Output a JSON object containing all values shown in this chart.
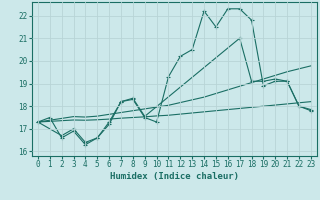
{
  "xlabel": "Humidex (Indice chaleur)",
  "bg_color": "#cce8ea",
  "grid_color": "#b8d4d6",
  "line_color": "#1a6e64",
  "xlim": [
    -0.5,
    23.5
  ],
  "ylim": [
    15.8,
    22.6
  ],
  "yticks": [
    16,
    17,
    18,
    19,
    20,
    21,
    22
  ],
  "xticks": [
    0,
    1,
    2,
    3,
    4,
    5,
    6,
    7,
    8,
    9,
    10,
    11,
    12,
    13,
    14,
    15,
    16,
    17,
    18,
    19,
    20,
    21,
    22,
    23
  ],
  "line1_x": [
    0,
    1,
    2,
    3,
    4,
    5,
    6,
    7,
    8,
    9,
    10,
    11,
    12,
    13,
    14,
    15,
    16,
    17,
    18,
    19,
    20,
    21,
    22,
    23
  ],
  "line1_y": [
    17.3,
    17.5,
    16.6,
    16.9,
    16.3,
    16.6,
    17.2,
    18.2,
    18.3,
    17.5,
    17.3,
    19.3,
    20.2,
    20.5,
    22.2,
    21.5,
    22.3,
    22.3,
    21.8,
    18.9,
    19.1,
    19.1,
    18.0,
    17.8
  ],
  "line2_x": [
    0,
    2,
    3,
    4,
    5,
    6,
    7,
    8,
    9,
    17,
    18,
    19,
    20,
    21,
    22,
    23
  ],
  "line2_y": [
    17.3,
    16.7,
    17.0,
    16.4,
    16.6,
    17.3,
    18.2,
    18.35,
    17.55,
    21.0,
    19.1,
    19.1,
    19.2,
    19.1,
    18.0,
    17.85
  ],
  "line3_x": [
    0,
    1,
    2,
    3,
    4,
    5,
    6,
    7,
    8,
    9,
    10,
    11,
    12,
    13,
    14,
    15,
    16,
    17,
    18,
    19,
    20,
    21,
    22,
    23
  ],
  "line3_y": [
    17.3,
    17.38,
    17.46,
    17.54,
    17.52,
    17.56,
    17.64,
    17.72,
    17.8,
    17.88,
    17.96,
    18.04,
    18.16,
    18.28,
    18.4,
    18.56,
    18.72,
    18.88,
    19.04,
    19.2,
    19.36,
    19.52,
    19.65,
    19.78
  ],
  "line4_x": [
    0,
    1,
    2,
    3,
    4,
    5,
    6,
    7,
    8,
    9,
    10,
    11,
    12,
    13,
    14,
    15,
    16,
    17,
    18,
    19,
    20,
    21,
    22,
    23
  ],
  "line4_y": [
    17.3,
    17.33,
    17.36,
    17.39,
    17.38,
    17.4,
    17.43,
    17.47,
    17.5,
    17.53,
    17.57,
    17.6,
    17.65,
    17.7,
    17.75,
    17.8,
    17.85,
    17.9,
    17.95,
    18.0,
    18.05,
    18.1,
    18.15,
    18.2
  ]
}
